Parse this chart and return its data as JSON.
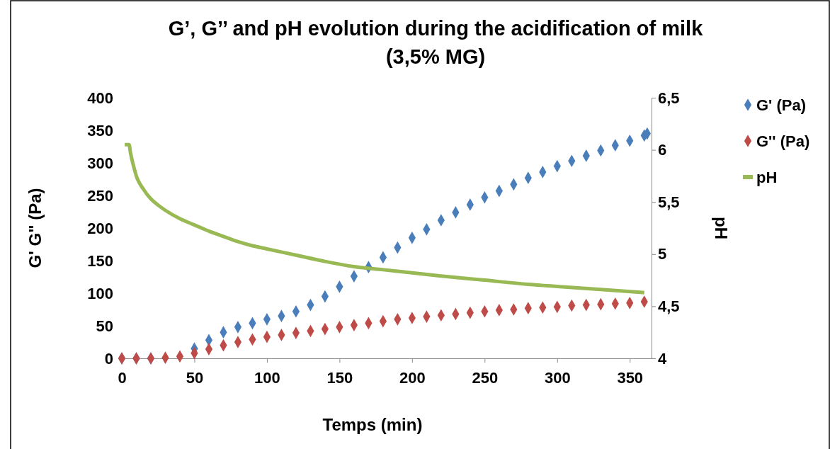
{
  "chart_data": {
    "type": "scatter",
    "title": "G’, G’’ and pH evolution during the acidification of milk (3,5% MG)",
    "xlabel": "Temps (min)",
    "ylabel": "G' G\" (Pa)",
    "y2label": "pH",
    "xlim": [
      0,
      365
    ],
    "xticks": [
      0,
      50,
      100,
      150,
      200,
      250,
      300,
      350
    ],
    "ylim": [
      0,
      400
    ],
    "yticks": [
      0,
      50,
      100,
      150,
      200,
      250,
      300,
      350,
      400
    ],
    "y2lim": [
      4,
      6.5
    ],
    "y2ticks": [
      {
        "value": 4,
        "label": "4"
      },
      {
        "value": 4.5,
        "label": "4,5"
      },
      {
        "value": 5,
        "label": "5"
      },
      {
        "value": 5.5,
        "label": "5,5"
      },
      {
        "value": 6,
        "label": "6"
      },
      {
        "value": 6.5,
        "label": "6,5"
      }
    ],
    "grid": false,
    "legend": "right",
    "series": [
      {
        "name": "G' (Pa)",
        "marker": "diamond",
        "color": "#4a7ebb",
        "x": [
          0,
          10,
          20,
          30,
          40,
          50,
          60,
          70,
          80,
          90,
          100,
          110,
          120,
          130,
          140,
          150,
          160,
          170,
          180,
          190,
          200,
          210,
          220,
          230,
          240,
          250,
          260,
          270,
          280,
          290,
          300,
          310,
          320,
          330,
          340,
          350,
          360,
          362
        ],
        "values": [
          0,
          0,
          0,
          null,
          null,
          15,
          28,
          40,
          48,
          54,
          60,
          65,
          72,
          82,
          95,
          110,
          126,
          140,
          155,
          170,
          185,
          198,
          212,
          224,
          236,
          247,
          257,
          267,
          277,
          286,
          295,
          303,
          311,
          319,
          327,
          334,
          342,
          345
        ]
      },
      {
        "name": "G'' (Pa)",
        "marker": "diamond",
        "color": "#be4b48",
        "x": [
          0,
          10,
          20,
          30,
          40,
          50,
          60,
          70,
          80,
          90,
          100,
          110,
          120,
          130,
          140,
          150,
          160,
          170,
          180,
          190,
          200,
          210,
          220,
          230,
          240,
          250,
          260,
          270,
          280,
          290,
          300,
          310,
          320,
          330,
          340,
          350,
          360
        ],
        "values": [
          0,
          0,
          0,
          1,
          3,
          8,
          14,
          20,
          25,
          29,
          33,
          36,
          39,
          42,
          45,
          48,
          51,
          54,
          57,
          60,
          62,
          64,
          66,
          68,
          70,
          72,
          74,
          75,
          77,
          78,
          79,
          81,
          82,
          83,
          84,
          85,
          87
        ]
      },
      {
        "name": "pH",
        "type": "line",
        "marker": "none",
        "axis": "y2",
        "color": "#98b954",
        "x": [
          2,
          5,
          6,
          8,
          10,
          15,
          20,
          25,
          30,
          40,
          50,
          60,
          70,
          80,
          90,
          100,
          120,
          140,
          160,
          180,
          200,
          220,
          250,
          280,
          300,
          330,
          360
        ],
        "values": [
          6.05,
          6.05,
          5.97,
          5.85,
          5.75,
          5.62,
          5.53,
          5.47,
          5.42,
          5.34,
          5.28,
          5.22,
          5.17,
          5.12,
          5.08,
          5.05,
          4.99,
          4.93,
          4.88,
          4.85,
          4.82,
          4.79,
          4.75,
          4.71,
          4.69,
          4.66,
          4.63
        ]
      }
    ]
  }
}
